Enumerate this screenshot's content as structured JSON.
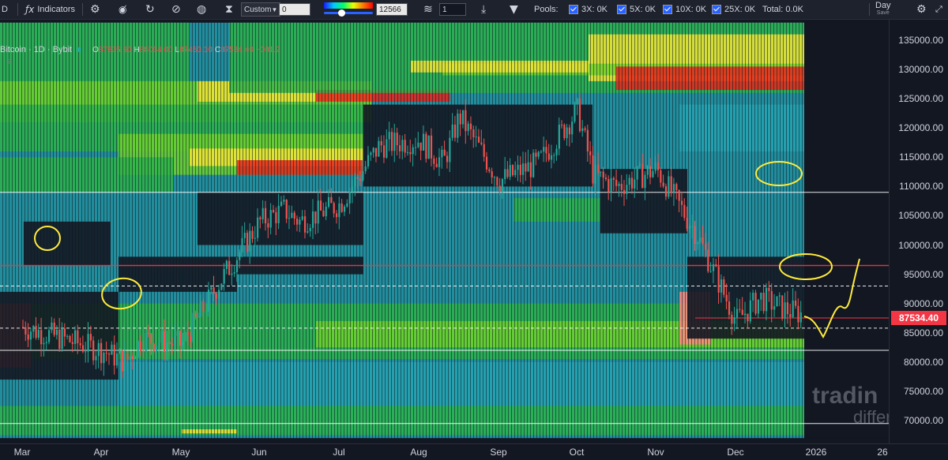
{
  "toolbar": {
    "symbol_fragment": "D",
    "indicators_label": "Indicators",
    "preset_value": "Custom",
    "preset_input": "0",
    "range_value": "12566",
    "layers_value": "1",
    "pools_label": "Pools:",
    "pools": [
      {
        "label": "3X: 0K"
      },
      {
        "label": "5X: 0K"
      },
      {
        "label": "10X: 0K"
      },
      {
        "label": "25X: 0K"
      }
    ],
    "total_label": "Total: 0.0K",
    "interval_label": "Day",
    "save_label": "Save"
  },
  "legend": {
    "title": "Bitcoin · 1D · Bybit",
    "open_label": "O",
    "open": "87835.60",
    "high_label": "H",
    "high": "88064.00",
    "low_label": "L",
    "low": "87450.10",
    "close_label": "C",
    "close": "87534.40",
    "change": "−301.2"
  },
  "y_axis": {
    "ticks": [
      "135000.00",
      "130000.00",
      "125000.00",
      "120000.00",
      "115000.00",
      "110000.00",
      "105000.00",
      "100000.00",
      "95000.00",
      "90000.00",
      "85000.00",
      "80000.00",
      "75000.00",
      "70000.00"
    ],
    "current_price": "87534.40"
  },
  "x_axis": {
    "ticks": [
      "Mar",
      "Apr",
      "May",
      "Jun",
      "Jul",
      "Aug",
      "Sep",
      "Oct",
      "Nov",
      "Dec",
      "2026",
      "26"
    ]
  },
  "watermark": {
    "line1": "tradin",
    "line2": "differ"
  },
  "colors": {
    "background": "#131722",
    "heat_low": "#1b5e8f",
    "heat_teal": "#26a3b3",
    "heat_green": "#2bb34a",
    "heat_lime": "#6fd12e",
    "heat_yellow": "#f2e635",
    "heat_red": "#e8231c",
    "candle_up": "#26a69a",
    "candle_down": "#ef5350",
    "annotation": "#ffeb3b",
    "price_line": "#f23645"
  },
  "chart_data": {
    "type": "heatmap",
    "title": "Bitcoin · 1D · Bybit",
    "xlabel": "",
    "ylabel": "",
    "x": [
      "Mar",
      "Apr",
      "May",
      "Jun",
      "Jul",
      "Aug",
      "Sep",
      "Oct",
      "Nov",
      "Dec",
      "2026"
    ],
    "ylim": [
      67000,
      138000
    ],
    "close_path": [
      [
        0,
        86000
      ],
      [
        0.5,
        84000
      ],
      [
        1,
        82000
      ],
      [
        1.3,
        80000
      ],
      [
        1.5,
        84000
      ],
      [
        2,
        83000
      ],
      [
        2.5,
        94000
      ],
      [
        3,
        104000
      ],
      [
        3.3,
        106000
      ],
      [
        3.5,
        104000
      ],
      [
        4,
        107000
      ],
      [
        4.5,
        117000
      ],
      [
        5,
        118000
      ],
      [
        5.3,
        114000
      ],
      [
        5.5,
        122000
      ],
      [
        6,
        111000
      ],
      [
        6.5,
        114000
      ],
      [
        7,
        123000
      ],
      [
        7.2,
        112000
      ],
      [
        7.5,
        110000
      ],
      [
        8,
        113000
      ],
      [
        8.5,
        102000
      ],
      [
        9,
        87000
      ],
      [
        9.3,
        91000
      ],
      [
        9.6,
        89000
      ],
      [
        10,
        87534
      ]
    ],
    "reference_lines": [
      109000,
      96500,
      93000,
      85800,
      82000,
      69500
    ],
    "current_price": 87534.4,
    "grid": false
  }
}
